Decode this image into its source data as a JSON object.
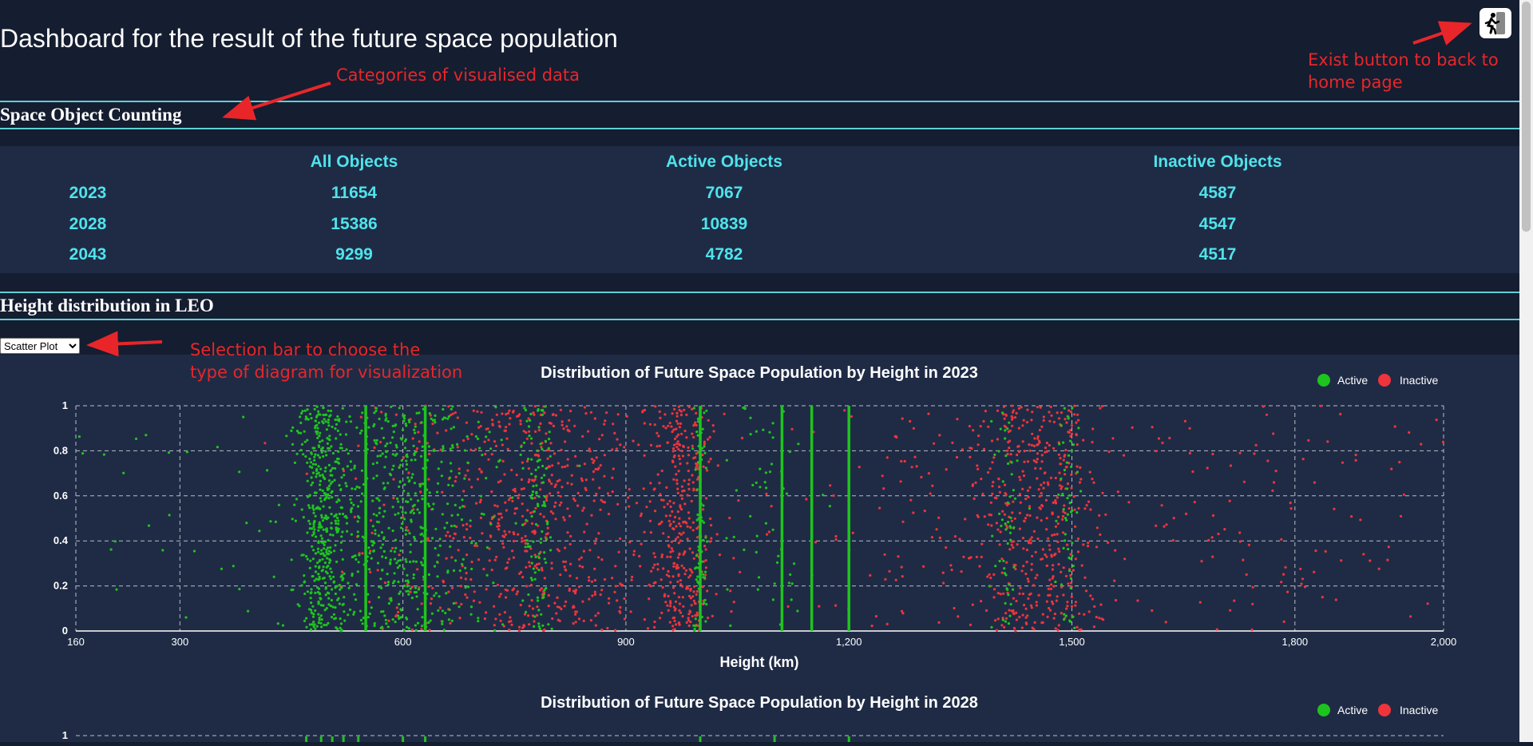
{
  "header": {
    "title": "Dashboard for the result of the future space population"
  },
  "exit_button": {
    "icon": "exit-running-man-icon"
  },
  "sections": {
    "counting": "Space Object Counting",
    "height": "Height distribution in LEO"
  },
  "counting_table": {
    "columns": [
      "",
      "All Objects",
      "Active Objects",
      "Inactive Objects"
    ],
    "rows": [
      [
        "2023",
        "11654",
        "7067",
        "4587"
      ],
      [
        "2028",
        "15386",
        "10839",
        "4547"
      ],
      [
        "2043",
        "9299",
        "4782",
        "4517"
      ]
    ]
  },
  "chart_selector": {
    "selected": "Scatter Plot",
    "options": [
      "Scatter Plot"
    ]
  },
  "annotations": {
    "categories": "Categories of visualised data",
    "exit_line1": "Exist button to back to",
    "exit_line2": "home page",
    "select_line1": "Selection bar to choose the",
    "select_line2": "type of diagram for visualization"
  },
  "colors": {
    "active": "#1ec41e",
    "inactive": "#f0343c",
    "accent": "#4fe3eb",
    "annotation": "#e8262a"
  },
  "chart_data": [
    {
      "type": "scatter",
      "title": "Distribution of Future Space Population by Height in 2023",
      "xlabel": "Height (km)",
      "ylabel": "",
      "xlim": [
        160,
        2000
      ],
      "ylim": [
        0,
        1
      ],
      "xticks": [
        160,
        300,
        600,
        900,
        1200,
        1500,
        1800,
        2000
      ],
      "xtick_labels": [
        "160",
        "300",
        "600",
        "900",
        "1,200",
        "1,500",
        "1,800",
        "2,000"
      ],
      "yticks": [
        0,
        0.2,
        0.4,
        0.6,
        0.8,
        1
      ],
      "ytick_labels": [
        "0",
        "0.2",
        "0.4",
        "0.6",
        "0.8",
        "1"
      ],
      "grid": true,
      "legend": "top-right",
      "y_meaning": "random jitter (uniform 0-1)",
      "series": [
        {
          "name": "Active",
          "height_clusters_km": [
            {
              "center": 490,
              "spread": 15,
              "weight": 0.28
            },
            {
              "center": 530,
              "spread": 40,
              "weight": 0.16
            },
            {
              "center": 600,
              "spread": 25,
              "weight": 0.16
            },
            {
              "center": 660,
              "spread": 40,
              "weight": 0.12
            },
            {
              "center": 780,
              "spread": 10,
              "weight": 0.08
            },
            {
              "center": 1000,
              "spread": 4,
              "weight": 0.05
            },
            {
              "center": 1090,
              "spread": 30,
              "weight": 0.04
            },
            {
              "center": 1410,
              "spread": 10,
              "weight": 0.04
            },
            {
              "center": 1495,
              "spread": 8,
              "weight": 0.04
            },
            {
              "center": 300,
              "spread": 150,
              "weight": 0.03
            }
          ],
          "dense_lines_km": [
            550,
            630,
            1000,
            1110,
            1150,
            1200
          ]
        },
        {
          "name": "Inactive",
          "height_clusters_km": [
            {
              "center": 780,
              "spread": 55,
              "weight": 0.22
            },
            {
              "center": 975,
              "spread": 20,
              "weight": 0.18
            },
            {
              "center": 1450,
              "spread": 45,
              "weight": 0.25
            },
            {
              "center": 880,
              "spread": 80,
              "weight": 0.12
            },
            {
              "center": 640,
              "spread": 60,
              "weight": 0.08
            },
            {
              "center": 1300,
              "spread": 120,
              "weight": 0.07
            },
            {
              "center": 1750,
              "spread": 180,
              "weight": 0.08
            }
          ]
        }
      ]
    },
    {
      "type": "scatter",
      "title": "Distribution of Future Space Population by Height in 2028",
      "legend": "top-right",
      "yticks_visible": [
        "1"
      ],
      "series": [
        {
          "name": "Active"
        },
        {
          "name": "Inactive"
        }
      ]
    }
  ]
}
